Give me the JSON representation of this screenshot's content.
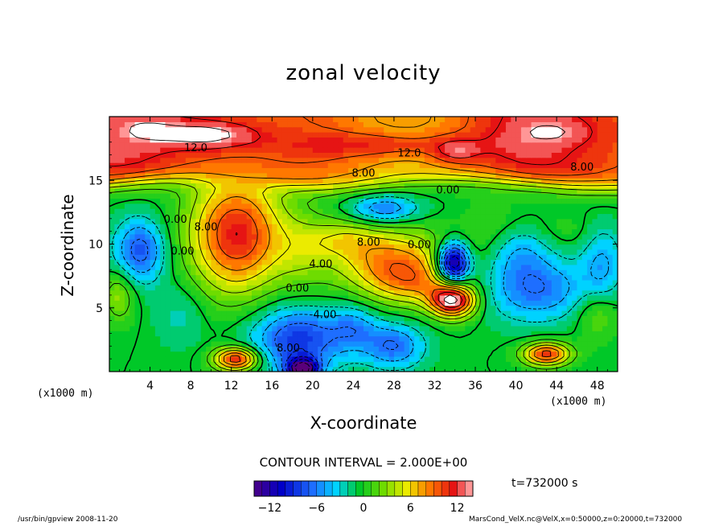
{
  "title": "zonal velocity",
  "chart_data": {
    "type": "heatmap",
    "title": "zonal velocity",
    "xlabel": "X-coordinate",
    "ylabel": "Z-coordinate",
    "x_unit_label": "(x1000 m)",
    "y_unit_label": "(x1000 m)",
    "xlim": [
      0,
      50
    ],
    "ylim": [
      0,
      20
    ],
    "x_ticks": [
      4,
      8,
      12,
      16,
      20,
      24,
      28,
      32,
      36,
      40,
      44,
      48
    ],
    "y_ticks": [
      5,
      10,
      15
    ],
    "contour_interval_text": "CONTOUR INTERVAL = 2.000E+00",
    "contour_labels": [
      {
        "text": "12.0",
        "x": 8.5,
        "z": 17.6
      },
      {
        "text": "12.0",
        "x": 29.5,
        "z": 17.2
      },
      {
        "text": "8.00",
        "x": 25.0,
        "z": 15.6
      },
      {
        "text": "8.00",
        "x": 46.5,
        "z": 16.1
      },
      {
        "text": "0.00",
        "x": 33.3,
        "z": 14.3
      },
      {
        "text": "0.00",
        "x": 6.5,
        "z": 12.0
      },
      {
        "text": "8.00",
        "x": 9.5,
        "z": 11.4
      },
      {
        "text": "0.00",
        "x": 7.2,
        "z": 9.5
      },
      {
        "text": "8.00",
        "x": 25.5,
        "z": 10.2
      },
      {
        "text": "0.00",
        "x": 30.5,
        "z": 10.0
      },
      {
        "text": "4.00",
        "x": 20.8,
        "z": 8.5
      },
      {
        "text": "0.00",
        "x": 18.5,
        "z": 6.6
      },
      {
        "text": "4.00",
        "x": 21.2,
        "z": 4.5
      },
      {
        "text": "8.00",
        "x": 17.6,
        "z": 1.9
      }
    ],
    "colorbar": {
      "min": -14,
      "max": 14,
      "ticks": [
        -12,
        -6,
        0,
        6,
        12
      ]
    },
    "colors": {
      "saturated_high": "#ffffff",
      "saturated_low": "#5a007a"
    }
  },
  "time_label": "t=732000 s",
  "footer_left": "/usr/bin/gpview   2008-11-20",
  "footer_right": "MarsCond_VelX.nc@VelX,x=0:50000,z=0:20000,t=732000"
}
